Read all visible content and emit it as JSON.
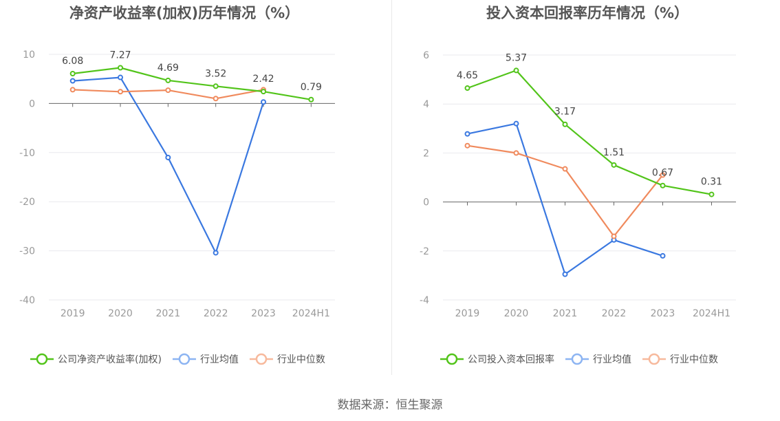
{
  "source": "数据来源：恒生聚源",
  "colors": {
    "company": "#52c41a",
    "avg": "#3a78e0",
    "median": "#f08a5d",
    "avg_legend": "#8cb4f2",
    "median_legend": "#f7b99c"
  },
  "chart_data": [
    {
      "type": "line",
      "title": "净资产收益率(加权)历年情况（%）",
      "categories": [
        "2019",
        "2020",
        "2021",
        "2022",
        "2023",
        "2024H1"
      ],
      "ylim": [
        -40,
        10
      ],
      "yticks": [
        "10",
        "0",
        "-10",
        "-20",
        "-30",
        "-40"
      ],
      "ytick_values": [
        10,
        0,
        -10,
        -20,
        -30,
        -40
      ],
      "legend_position": "bottom",
      "grid": true,
      "series": [
        {
          "name": "公司净资产收益率(加权)",
          "values": [
            6.08,
            7.27,
            4.69,
            3.52,
            2.42,
            0.79
          ],
          "labels": [
            "6.08",
            "7.27",
            "4.69",
            "3.52",
            "2.42",
            "0.79"
          ]
        },
        {
          "name": "行业均值",
          "values": [
            4.6,
            5.3,
            -11,
            -30.4,
            0.3,
            null
          ]
        },
        {
          "name": "行业中位数",
          "values": [
            2.8,
            2.4,
            2.7,
            1.0,
            2.8,
            null
          ]
        }
      ]
    },
    {
      "type": "line",
      "title": "投入资本回报率历年情况（%）",
      "categories": [
        "2019",
        "2020",
        "2021",
        "2022",
        "2023",
        "2024H1"
      ],
      "ylim": [
        -4,
        6
      ],
      "yticks": [
        "6",
        "4",
        "2",
        "0",
        "-2",
        "-4"
      ],
      "ytick_values": [
        6,
        4,
        2,
        0,
        -2,
        -4
      ],
      "legend_position": "bottom",
      "grid": true,
      "series": [
        {
          "name": "公司投入资本回报率",
          "values": [
            4.65,
            5.37,
            3.17,
            1.51,
            0.67,
            0.31
          ],
          "labels": [
            "4.65",
            "5.37",
            "3.17",
            "1.51",
            "0.67",
            "0.31"
          ]
        },
        {
          "name": "行业均值",
          "values": [
            2.78,
            3.2,
            -2.95,
            -1.55,
            -2.2,
            null
          ]
        },
        {
          "name": "行业中位数",
          "values": [
            2.3,
            2.0,
            1.35,
            -1.4,
            1.1,
            null
          ]
        }
      ]
    }
  ]
}
